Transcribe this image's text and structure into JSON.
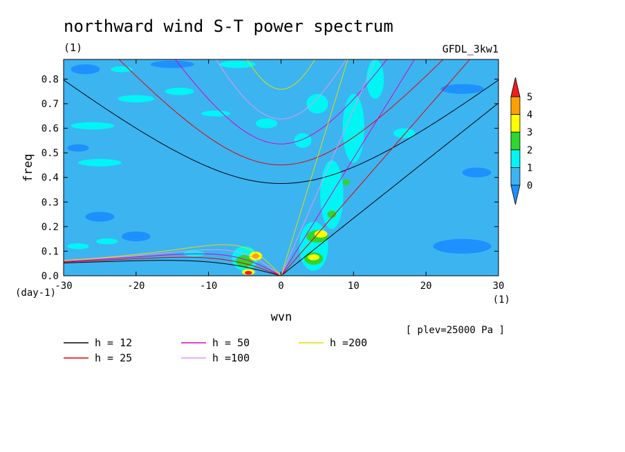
{
  "chart_data": {
    "type": "heatmap",
    "title": "northward wind S-T power spectrum",
    "units_label": "(1)",
    "model_label": "GFDL_3kw1",
    "xlabel": "wvn",
    "ylabel": "freq",
    "x_unit_label": "(1)",
    "y_unit_label": "(day-1)",
    "level_label": "[ plev=25000 Pa ]",
    "xlim": [
      -30,
      30
    ],
    "ylim": [
      0,
      0.88
    ],
    "x_ticks": [
      -30,
      -20,
      -10,
      0,
      10,
      20,
      30
    ],
    "x_tick_labels": [
      "-30",
      "-20",
      "-10",
      "0",
      "10",
      "20",
      "30"
    ],
    "y_ticks": [
      0,
      0.1,
      0.2,
      0.3,
      0.4,
      0.5,
      0.6,
      0.7,
      0.8
    ],
    "y_tick_labels": [
      "0.0",
      "0.1",
      "0.2",
      "0.3",
      "0.4",
      "0.5",
      "0.6",
      "0.7",
      "0.8"
    ],
    "colorbar": {
      "levels": [
        "0",
        "1",
        "2",
        "3",
        "4",
        "5"
      ],
      "colors": [
        "#1e90ff",
        "#3cb4f0",
        "#00f5f5",
        "#2ed62e",
        "#ffff00",
        "#ffa000",
        "#f01e1e"
      ]
    },
    "background_color": "#3cb4f0",
    "regions": [
      {
        "level": 0,
        "cx": -27,
        "cy": 0.84,
        "rx": 2,
        "ry": 0.02
      },
      {
        "level": 0,
        "cx": -15,
        "cy": 0.86,
        "rx": 3,
        "ry": 0.015
      },
      {
        "level": 0,
        "cx": -28,
        "cy": 0.52,
        "rx": 1.5,
        "ry": 0.015
      },
      {
        "level": 0,
        "cx": -25,
        "cy": 0.24,
        "rx": 2,
        "ry": 0.02
      },
      {
        "level": 0,
        "cx": -20,
        "cy": 0.16,
        "rx": 2,
        "ry": 0.02
      },
      {
        "level": 0,
        "cx": 25,
        "cy": 0.12,
        "rx": 4,
        "ry": 0.03
      },
      {
        "level": 0,
        "cx": 27,
        "cy": 0.42,
        "rx": 2,
        "ry": 0.02
      },
      {
        "level": 0,
        "cx": 25,
        "cy": 0.76,
        "rx": 3,
        "ry": 0.02
      },
      {
        "level": 2,
        "cx": -26,
        "cy": 0.61,
        "rx": 3,
        "ry": 0.015
      },
      {
        "level": 2,
        "cx": -20,
        "cy": 0.72,
        "rx": 2.5,
        "ry": 0.015
      },
      {
        "level": 2,
        "cx": -25,
        "cy": 0.46,
        "rx": 3,
        "ry": 0.015
      },
      {
        "level": 2,
        "cx": -14,
        "cy": 0.75,
        "rx": 2,
        "ry": 0.015
      },
      {
        "level": 2,
        "cx": -6,
        "cy": 0.86,
        "rx": 2.5,
        "ry": 0.015
      },
      {
        "level": 2,
        "cx": -22,
        "cy": 0.84,
        "rx": 1.5,
        "ry": 0.012
      },
      {
        "level": 2,
        "cx": -9,
        "cy": 0.66,
        "rx": 2,
        "ry": 0.012
      },
      {
        "level": 2,
        "cx": -28,
        "cy": 0.12,
        "rx": 1.5,
        "ry": 0.012
      },
      {
        "level": 2,
        "cx": -24,
        "cy": 0.14,
        "rx": 1.5,
        "ry": 0.012
      },
      {
        "level": 2,
        "cx": -12,
        "cy": 0.09,
        "rx": 1.5,
        "ry": 0.012
      },
      {
        "level": 2,
        "cx": -5,
        "cy": 0.07,
        "rx": 1.8,
        "ry": 0.05
      },
      {
        "level": 2,
        "cx": 4.5,
        "cy": 0.12,
        "rx": 2,
        "ry": 0.1
      },
      {
        "level": 2,
        "cx": 7,
        "cy": 0.33,
        "rx": 1.6,
        "ry": 0.14
      },
      {
        "level": 2,
        "cx": 10,
        "cy": 0.6,
        "rx": 1.5,
        "ry": 0.14
      },
      {
        "level": 2,
        "cx": 13,
        "cy": 0.8,
        "rx": 1.2,
        "ry": 0.08
      },
      {
        "level": 2,
        "cx": 3,
        "cy": 0.55,
        "rx": 1.2,
        "ry": 0.03
      },
      {
        "level": 2,
        "cx": 5,
        "cy": 0.7,
        "rx": 1.5,
        "ry": 0.04
      },
      {
        "level": 2,
        "cx": -2,
        "cy": 0.62,
        "rx": 1.5,
        "ry": 0.02
      },
      {
        "level": 2,
        "cx": 17,
        "cy": 0.58,
        "rx": 1.5,
        "ry": 0.02
      },
      {
        "level": 3,
        "cx": -5,
        "cy": 0.06,
        "rx": 1.2,
        "ry": 0.025
      },
      {
        "level": 3,
        "cx": 5,
        "cy": 0.16,
        "rx": 1.5,
        "ry": 0.025
      },
      {
        "level": 3,
        "cx": 4.5,
        "cy": 0.07,
        "rx": 1.3,
        "ry": 0.025
      },
      {
        "level": 3,
        "cx": 7,
        "cy": 0.25,
        "rx": 0.6,
        "ry": 0.015
      },
      {
        "level": 3,
        "cx": 9,
        "cy": 0.38,
        "rx": 0.5,
        "ry": 0.012
      },
      {
        "level": 4,
        "cx": -3.5,
        "cy": 0.08,
        "rx": 0.9,
        "ry": 0.018
      },
      {
        "level": 4,
        "cx": -4.5,
        "cy": 0.015,
        "rx": 0.9,
        "ry": 0.012
      },
      {
        "level": 4,
        "cx": 5.5,
        "cy": 0.17,
        "rx": 0.9,
        "ry": 0.015
      },
      {
        "level": 4,
        "cx": 4.5,
        "cy": 0.075,
        "rx": 0.8,
        "ry": 0.012
      },
      {
        "level": 5,
        "cx": -3.5,
        "cy": 0.08,
        "rx": 0.5,
        "ry": 0.01
      },
      {
        "level": 6,
        "cx": -4.5,
        "cy": 0.012,
        "rx": 0.5,
        "ry": 0.008
      }
    ],
    "series": [
      {
        "name": "h = 12",
        "color": "#000000",
        "h": 12
      },
      {
        "name": "h = 25",
        "color": "#e60000",
        "h": 25
      },
      {
        "name": "h = 50",
        "color": "#dc00c8",
        "h": 50
      },
      {
        "name": "h =100",
        "color": "#e696e6",
        "h": 100
      },
      {
        "name": "h =200",
        "color": "#e6dc00",
        "h": 200
      }
    ]
  }
}
